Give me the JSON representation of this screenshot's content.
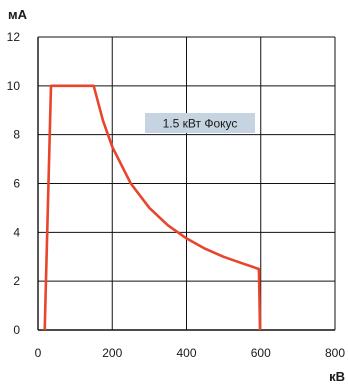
{
  "chart_data": {
    "type": "line",
    "title": "",
    "ylabel": "мА",
    "xlabel": "кВ",
    "xlim": [
      0,
      800
    ],
    "ylim": [
      0,
      12
    ],
    "x_ticks": [
      "0",
      "200",
      "400",
      "600",
      "800"
    ],
    "y_ticks": [
      "0",
      "2",
      "4",
      "6",
      "8",
      "10",
      "12"
    ],
    "grid": true,
    "annotation": "1.5 кВт Фокус",
    "series": [
      {
        "color": "#e8452c",
        "x": [
          18,
          35,
          150,
          175,
          200,
          250,
          300,
          350,
          400,
          450,
          500,
          550,
          595,
          597,
          598
        ],
        "y": [
          0,
          10,
          10,
          8.57,
          7.5,
          6.0,
          5.0,
          4.29,
          3.75,
          3.33,
          3.0,
          2.73,
          2.5,
          1.0,
          0
        ]
      }
    ],
    "colors": {
      "line": "#e8452c",
      "grid": "#111111",
      "annotation_bg": "#c6d3e0"
    }
  }
}
